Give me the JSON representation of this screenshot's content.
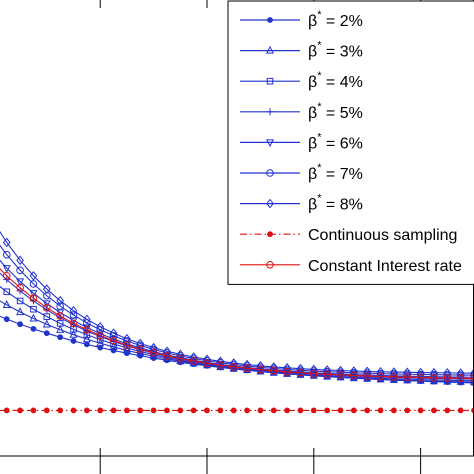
{
  "chart_data": {
    "type": "line",
    "title": "",
    "xlabel": "",
    "ylabel": "",
    "xlim": [
      0,
      20
    ],
    "ylim": [
      0,
      1
    ],
    "x_ticks": [
      2,
      6,
      10,
      14,
      18
    ],
    "grid": false,
    "legend_position": "top-right",
    "x": [
      0,
      0.5,
      1,
      1.5,
      2,
      2.5,
      3,
      3.5,
      4,
      4.5,
      5,
      5.5,
      6,
      6.5,
      7,
      7.5,
      8,
      8.5,
      9,
      9.5,
      10,
      10.5,
      11,
      11.5,
      12,
      12.5,
      13,
      13.5,
      14,
      14.5,
      15,
      15.5,
      16,
      16.5,
      17,
      17.5,
      18,
      18.5,
      19,
      19.5,
      20
    ],
    "series": [
      {
        "legend_prefix": "β",
        "legend_sup": "*",
        "legend_suffix": " = 2%",
        "color": "#2233cc",
        "marker": "dot",
        "line": "solid",
        "a": 0.22,
        "b": 0.153,
        "c": 0.15
      },
      {
        "legend_prefix": "β",
        "legend_sup": "*",
        "legend_suffix": " = 3%",
        "color": "#2233cc",
        "marker": "triangle-up",
        "line": "solid",
        "a": 0.28,
        "b": 0.185,
        "c": 0.155
      },
      {
        "legend_prefix": "β",
        "legend_sup": "*",
        "legend_suffix": " = 4%",
        "color": "#2233cc",
        "marker": "square",
        "line": "solid",
        "a": 0.34,
        "b": 0.212,
        "c": 0.16
      },
      {
        "legend_prefix": "β",
        "legend_sup": "*",
        "legend_suffix": " = 5%",
        "color": "#2233cc",
        "marker": "plus",
        "line": "solid",
        "a": 0.4,
        "b": 0.236,
        "c": 0.165
      },
      {
        "legend_prefix": "β",
        "legend_sup": "*",
        "legend_suffix": " = 6%",
        "color": "#2233cc",
        "marker": "triangle-down",
        "line": "solid",
        "a": 0.46,
        "b": 0.257,
        "c": 0.17
      },
      {
        "legend_prefix": "β",
        "legend_sup": "*",
        "legend_suffix": " = 7%",
        "color": "#2233cc",
        "marker": "circle",
        "line": "solid",
        "a": 0.53,
        "b": 0.275,
        "c": 0.175
      },
      {
        "legend_prefix": "β",
        "legend_sup": "*",
        "legend_suffix": " = 8%",
        "color": "#2233cc",
        "marker": "diamond",
        "line": "solid",
        "a": 0.6,
        "b": 0.293,
        "c": 0.18
      },
      {
        "legend_prefix": "",
        "legend_sup": "",
        "legend_suffix": "Continuous sampling",
        "color": "#dd1111",
        "marker": "dot",
        "line": "dashdot",
        "a": 0.0,
        "b": 0.0,
        "c": 0.1
      },
      {
        "legend_prefix": "",
        "legend_sup": "",
        "legend_suffix": "Constant Interest rate",
        "color": "#dd1111",
        "marker": "circle",
        "line": "solid",
        "a": 0.42,
        "b": 0.244,
        "c": 0.167
      }
    ]
  }
}
